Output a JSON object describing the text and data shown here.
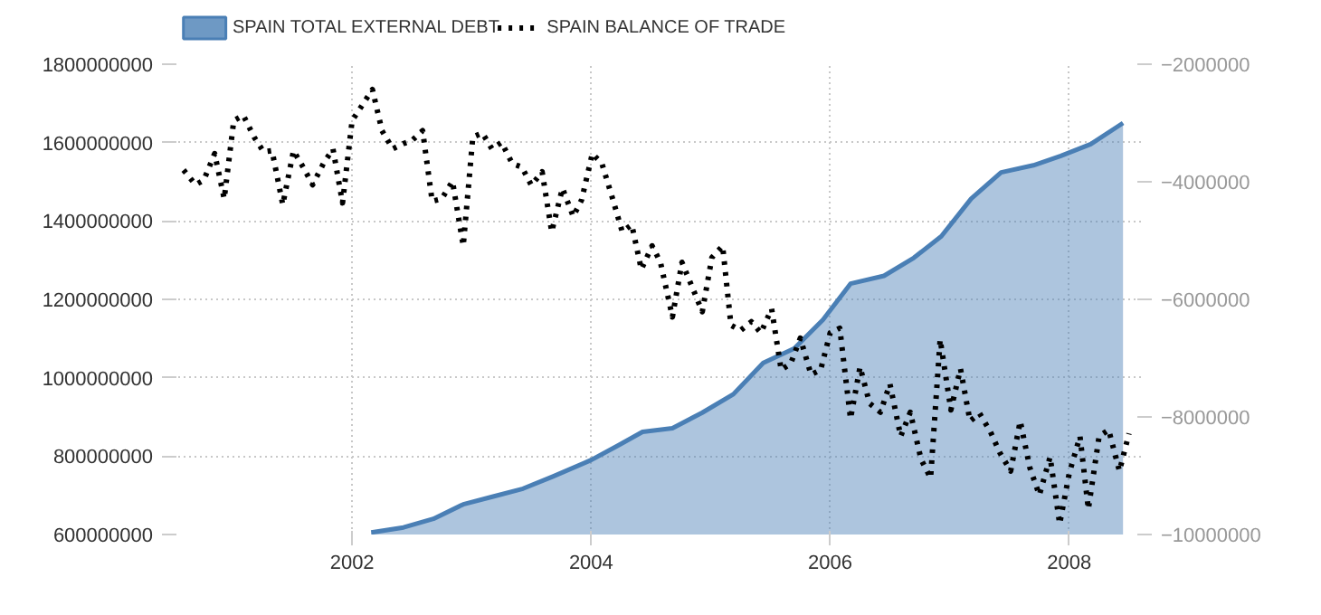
{
  "chart_data": {
    "type": "area",
    "legend": "top left",
    "grid": true,
    "xlim": [
      2000.5,
      2008.6
    ],
    "xticks": [
      2002,
      2004,
      2006,
      2008
    ],
    "ylim": [
      600000000,
      1800000000
    ],
    "yticks": [
      600000000,
      800000000,
      1000000000,
      1200000000,
      1400000000,
      1600000000,
      1800000000
    ],
    "y2lim": [
      -10000000,
      -2000000
    ],
    "y2ticks": [
      -10000000,
      -8000000,
      -6000000,
      -4000000,
      -2000000
    ],
    "series": [
      {
        "name": "SPAIN TOTAL EXTERNAL DEBT",
        "color": "#4a7fb5",
        "x": [
          2002.16,
          2002.43,
          2002.68,
          2002.93,
          2003.18,
          2003.43,
          2003.68,
          2004.0,
          2004.23,
          2004.43,
          2004.68,
          2004.93,
          2005.19,
          2005.44,
          2005.7,
          2005.94,
          2006.17,
          2006.45,
          2006.7,
          2006.93,
          2007.18,
          2007.43,
          2007.7,
          2007.93,
          2008.18,
          2008.45
        ],
        "values": [
          605000000,
          618000000,
          640000000,
          677000000,
          697000000,
          717000000,
          748000000,
          790000000,
          828000000,
          862000000,
          871000000,
          911000000,
          958000000,
          1038000000,
          1075000000,
          1148000000,
          1240000000,
          1260000000,
          1306000000,
          1361000000,
          1457000000,
          1524000000,
          1542000000,
          1566000000,
          1596000000,
          1650000000
        ]
      },
      {
        "name": "SPAIN BALANCE OF TRADE",
        "type": "line",
        "axis": "y2",
        "color": "#000000",
        "line_style": "dotted",
        "x": [
          2000.59,
          2000.69,
          2000.76,
          2000.85,
          2000.93,
          2001.01,
          2001.09,
          2001.18,
          2001.26,
          2001.33,
          2001.42,
          2001.51,
          2001.59,
          2001.67,
          2001.76,
          2001.84,
          2001.92,
          2002.0,
          2002.09,
          2002.17,
          2002.25,
          2002.34,
          2002.43,
          2002.5,
          2002.59,
          2002.67,
          2002.75,
          2002.84,
          2002.93,
          2003.01,
          2003.09,
          2003.17,
          2003.25,
          2003.34,
          2003.42,
          2003.5,
          2003.59,
          2003.67,
          2003.76,
          2003.85,
          2003.92,
          2004.01,
          2004.09,
          2004.18,
          2004.26,
          2004.34,
          2004.42,
          2004.51,
          2004.58,
          2004.68,
          2004.76,
          2004.93,
          2005.01,
          2005.1,
          2005.17,
          2005.25,
          2005.34,
          2005.42,
          2005.51,
          2005.59,
          2005.67,
          2005.75,
          2005.84,
          2005.92,
          2006.0,
          2006.08,
          2006.17,
          2006.25,
          2006.33,
          2006.42,
          2006.5,
          2006.59,
          2006.67,
          2006.76,
          2006.84,
          2006.92,
          2007.01,
          2007.09,
          2007.17,
          2007.25,
          2007.34,
          2007.42,
          2007.51,
          2007.59,
          2007.67,
          2007.75,
          2007.84,
          2007.92,
          2008.0,
          2008.09,
          2008.16,
          2008.25,
          2008.33,
          2008.42,
          2008.5
        ],
        "values": [
          -3800000,
          -4050000,
          -3970000,
          -3520000,
          -4290000,
          -2960000,
          -2870000,
          -3240000,
          -3490000,
          -3470000,
          -4390000,
          -3470000,
          -3750000,
          -4050000,
          -3690000,
          -3440000,
          -4360000,
          -2960000,
          -2680000,
          -2430000,
          -3130000,
          -3440000,
          -3350000,
          -3300000,
          -3130000,
          -4330000,
          -4290000,
          -3990000,
          -5090000,
          -3240000,
          -3170000,
          -3440000,
          -3330000,
          -3690000,
          -3750000,
          -4060000,
          -3830000,
          -4850000,
          -4110000,
          -4590000,
          -4310000,
          -3520000,
          -3690000,
          -4290000,
          -4850000,
          -4730000,
          -5490000,
          -5090000,
          -5370000,
          -6300000,
          -5370000,
          -6210000,
          -5290000,
          -5090000,
          -6440000,
          -6530000,
          -6380000,
          -6570000,
          -6160000,
          -7200000,
          -7090000,
          -6660000,
          -7280000,
          -7200000,
          -6570000,
          -6490000,
          -8030000,
          -7150000,
          -7770000,
          -7920000,
          -7440000,
          -8330000,
          -7920000,
          -8720000,
          -9040000,
          -6680000,
          -7880000,
          -7180000,
          -8070000,
          -7940000,
          -8250000,
          -8610000,
          -8920000,
          -8070000,
          -8860000,
          -9330000,
          -8680000,
          -9820000,
          -8960000,
          -8330000,
          -9570000,
          -8330000,
          -8220000,
          -8920000,
          -8280000
        ]
      }
    ]
  }
}
